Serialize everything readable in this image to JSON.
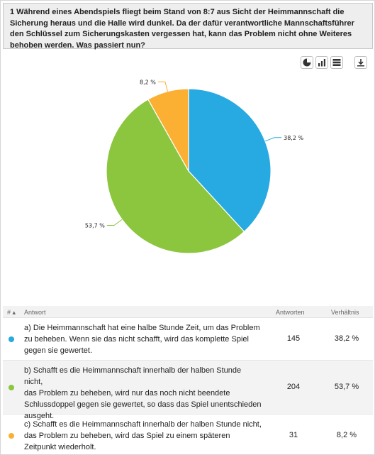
{
  "question": {
    "text": "1 Während eines Abendspiels fliegt beim Stand von 8:7 aus Sicht der Heimmannschaft die Sicherung heraus und die Halle wird dunkel. Da der dafür verantwortliche Mannschaftsführer den Schlüssel zum Sicherungskasten vergessen hat, kann das Problem nicht ohne Weiteres behoben werden. Was passiert nun?"
  },
  "toolbar": {
    "icons": [
      "pie-chart-icon",
      "bar-chart-icon",
      "table-icon",
      "download-icon"
    ]
  },
  "chart_data": {
    "type": "pie",
    "categories": [
      "a",
      "b",
      "c"
    ],
    "values": [
      38.2,
      53.7,
      8.2
    ],
    "labels": [
      "38,2 %",
      "53,7 %",
      "8,2 %"
    ],
    "colors": [
      "#27a9e1",
      "#8cc63f",
      "#fbb034"
    ]
  },
  "table": {
    "headers": {
      "index": "#",
      "answer": "Antwort",
      "count": "Antworten",
      "ratio": "Verhältnis"
    },
    "rows": [
      {
        "lines": [
          "a) Die Heimmannschaft hat eine halbe Stunde Zeit, um das Problem",
          "zu beheben. Wenn sie das nicht schafft, wird das komplette Spiel",
          "gegen sie gewertet."
        ],
        "count": "145",
        "ratio": "38,2 %",
        "color": "#27a9e1"
      },
      {
        "lines": [
          "b) Schafft es die Heimmannschaft innerhalb der halben Stunde nicht,",
          "das Problem zu beheben, wird nur das noch nicht beendete",
          "Schlussdoppel gegen sie gewertet, so dass das Spiel unentschieden",
          "ausgeht."
        ],
        "count": "204",
        "ratio": "53,7 %",
        "color": "#8cc63f"
      },
      {
        "lines": [
          "c) Schafft es die Heimmannschaft innerhalb der halben Stunde nicht,",
          "das Problem zu beheben, wird das Spiel zu einem späteren",
          "Zeitpunkt wiederholt."
        ],
        "count": "31",
        "ratio": "8,2 %",
        "color": "#fbb034"
      }
    ]
  }
}
